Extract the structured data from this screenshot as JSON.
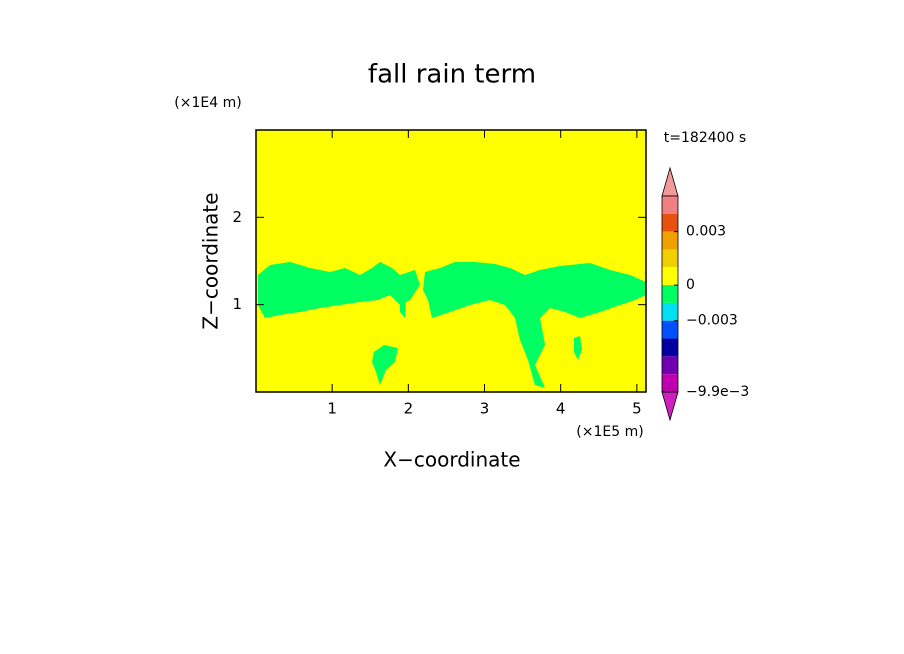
{
  "chart_data": {
    "type": "contour",
    "title": "fall rain term",
    "xlabel": "X−coordinate",
    "ylabel": "Z−coordinate",
    "x_unit_label": "(×1E5 m)",
    "y_unit_label": "(×1E4 m)",
    "time_label": "t=182400 s",
    "xlim": [
      0,
      5.12
    ],
    "xticks": [
      1,
      2,
      3,
      4,
      5
    ],
    "ylim": [
      0,
      3
    ],
    "yticks": [
      1,
      2
    ],
    "colorbar": {
      "levels": [
        0.005,
        0.004,
        0.003,
        0.002,
        0.001,
        0,
        -0.0015,
        -0.003,
        -0.004,
        -0.006,
        -0.008,
        -0.0099
      ],
      "colors": [
        "#f29a9a",
        "#f08080",
        "#e85010",
        "#f0a000",
        "#f0d000",
        "#ffff00",
        "#00ff60",
        "#00e0f0",
        "#0050ff",
        "#0000a0",
        "#7000b0",
        "#c000b0",
        "#d020c0"
      ],
      "ticks": [
        {
          "value": 0.003,
          "label": "0.003"
        },
        0,
        {
          "value": -0.003,
          "label": "−0.003"
        },
        {
          "value": -0.0099,
          "label": "−9.9e−3"
        }
      ]
    }
  }
}
